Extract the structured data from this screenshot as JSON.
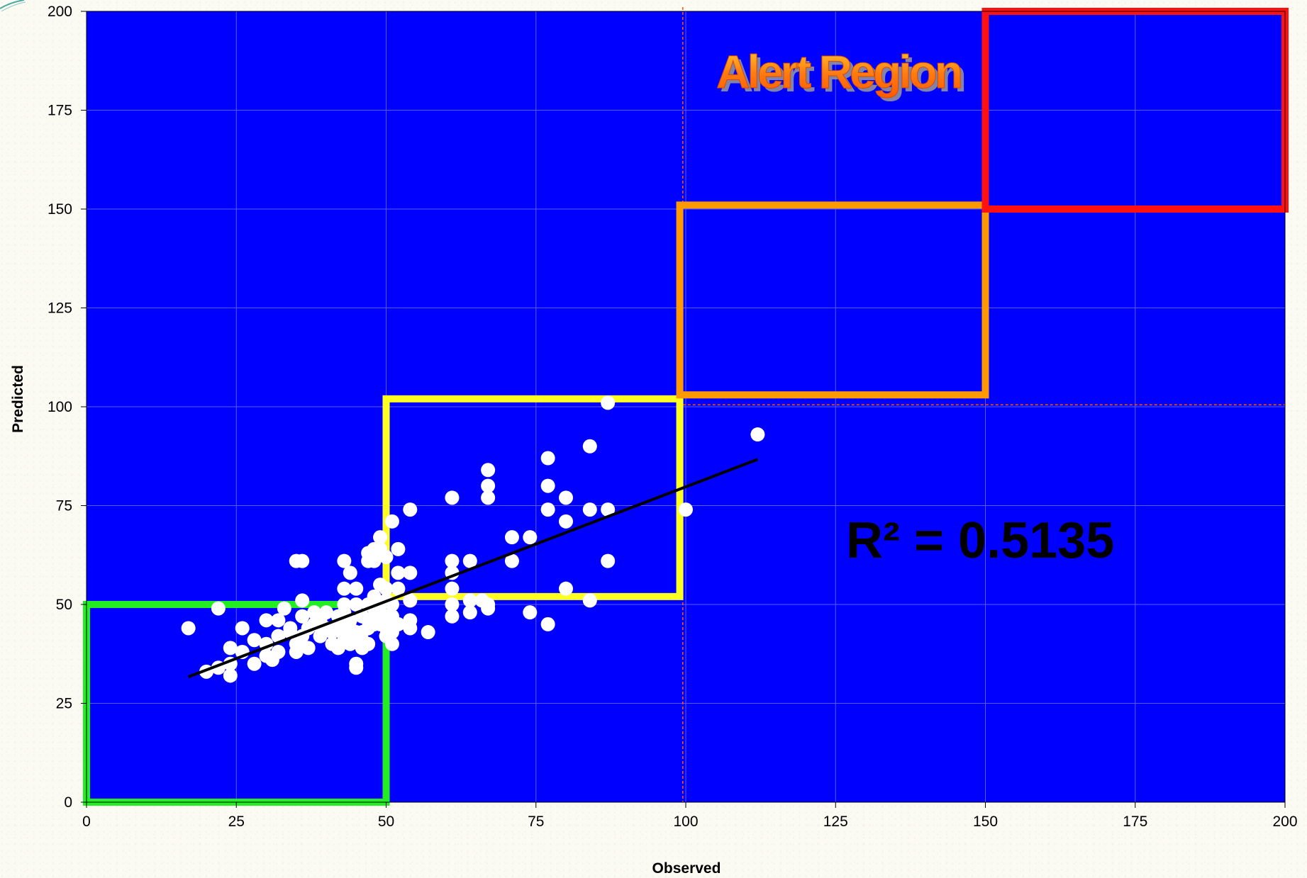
{
  "chart_data": {
    "type": "scatter",
    "xlabel": "Observed",
    "ylabel": "Predicted",
    "xlim": [
      0,
      200
    ],
    "ylim": [
      0,
      200
    ],
    "xticks": [
      0,
      25,
      50,
      75,
      100,
      125,
      150,
      175,
      200
    ],
    "yticks": [
      0,
      25,
      50,
      75,
      100,
      125,
      150,
      175,
      200
    ],
    "grid": true,
    "plot_background": "#0000ff",
    "marker_color": "#ffffff",
    "points": [
      [
        17,
        44
      ],
      [
        20,
        33
      ],
      [
        22,
        34
      ],
      [
        22,
        49
      ],
      [
        24,
        39
      ],
      [
        24,
        32
      ],
      [
        24,
        35
      ],
      [
        26,
        38
      ],
      [
        26,
        44
      ],
      [
        28,
        41
      ],
      [
        28,
        35
      ],
      [
        30,
        37
      ],
      [
        30,
        40
      ],
      [
        30,
        46
      ],
      [
        31,
        36
      ],
      [
        32,
        42
      ],
      [
        32,
        38
      ],
      [
        32,
        46
      ],
      [
        33,
        49
      ],
      [
        34,
        44
      ],
      [
        34,
        43
      ],
      [
        35,
        38
      ],
      [
        35,
        40
      ],
      [
        35,
        61
      ],
      [
        36,
        61
      ],
      [
        36,
        42
      ],
      [
        36,
        47
      ],
      [
        36,
        51
      ],
      [
        37,
        39
      ],
      [
        37,
        44
      ],
      [
        38,
        45
      ],
      [
        38,
        48
      ],
      [
        39,
        46
      ],
      [
        39,
        42
      ],
      [
        40,
        44
      ],
      [
        40,
        48
      ],
      [
        41,
        40
      ],
      [
        41,
        43
      ],
      [
        42,
        39
      ],
      [
        42,
        45
      ],
      [
        42,
        47
      ],
      [
        43,
        48
      ],
      [
        43,
        41
      ],
      [
        43,
        42
      ],
      [
        43,
        50
      ],
      [
        43,
        54
      ],
      [
        43,
        61
      ],
      [
        44,
        46
      ],
      [
        44,
        58
      ],
      [
        44,
        44
      ],
      [
        44,
        40
      ],
      [
        45,
        42
      ],
      [
        45,
        43
      ],
      [
        45,
        54
      ],
      [
        45,
        34
      ],
      [
        45,
        35
      ],
      [
        45,
        50
      ],
      [
        46,
        41
      ],
      [
        46,
        47
      ],
      [
        46,
        39
      ],
      [
        46,
        43
      ],
      [
        47,
        44
      ],
      [
        47,
        46
      ],
      [
        47,
        50
      ],
      [
        47,
        40
      ],
      [
        47,
        61
      ],
      [
        47,
        63
      ],
      [
        48,
        45
      ],
      [
        48,
        47
      ],
      [
        48,
        49
      ],
      [
        48,
        52
      ],
      [
        48,
        61
      ],
      [
        48,
        64
      ],
      [
        49,
        45
      ],
      [
        49,
        48
      ],
      [
        49,
        50
      ],
      [
        49,
        55
      ],
      [
        49,
        64
      ],
      [
        49,
        67
      ],
      [
        50,
        42
      ],
      [
        50,
        44
      ],
      [
        50,
        47
      ],
      [
        50,
        51
      ],
      [
        50,
        54
      ],
      [
        50,
        62
      ],
      [
        51,
        40
      ],
      [
        51,
        43
      ],
      [
        51,
        47
      ],
      [
        51,
        50
      ],
      [
        51,
        71
      ],
      [
        52,
        45
      ],
      [
        52,
        54
      ],
      [
        52,
        58
      ],
      [
        52,
        64
      ],
      [
        54,
        44
      ],
      [
        54,
        46
      ],
      [
        54,
        51
      ],
      [
        54,
        58
      ],
      [
        54,
        74
      ],
      [
        57,
        43
      ],
      [
        61,
        47
      ],
      [
        61,
        50
      ],
      [
        61,
        54
      ],
      [
        61,
        58
      ],
      [
        61,
        61
      ],
      [
        61,
        77
      ],
      [
        64,
        51
      ],
      [
        64,
        48
      ],
      [
        64,
        61
      ],
      [
        66,
        51
      ],
      [
        67,
        49
      ],
      [
        67,
        50
      ],
      [
        67,
        77
      ],
      [
        67,
        80
      ],
      [
        67,
        84
      ],
      [
        71,
        61
      ],
      [
        71,
        67
      ],
      [
        74,
        48
      ],
      [
        74,
        67
      ],
      [
        77,
        45
      ],
      [
        77,
        74
      ],
      [
        77,
        80
      ],
      [
        77,
        87
      ],
      [
        80,
        54
      ],
      [
        80,
        71
      ],
      [
        80,
        77
      ],
      [
        84,
        51
      ],
      [
        84,
        74
      ],
      [
        84,
        90
      ],
      [
        87,
        61
      ],
      [
        87,
        74
      ],
      [
        87,
        101
      ],
      [
        100,
        74
      ],
      [
        112,
        93
      ]
    ],
    "trendline": {
      "x": [
        17,
        112
      ],
      "y": [
        31.7,
        86.7
      ],
      "color": "#000000"
    },
    "regions": [
      {
        "x": [
          0,
          50
        ],
        "y": [
          0,
          50
        ],
        "color": "#22ee22"
      },
      {
        "x": [
          50,
          99
        ],
        "y": [
          52,
          102
        ],
        "color": "#ffff22"
      },
      {
        "x": [
          99,
          150
        ],
        "y": [
          103,
          151
        ],
        "color": "#ff9900"
      },
      {
        "x": [
          150,
          200
        ],
        "y": [
          150,
          200
        ],
        "color": "#ff1111"
      }
    ],
    "threshold_lines": {
      "x": 99.5,
      "y": 100.5,
      "color": "#ff5500"
    },
    "annotations": {
      "r_squared": "R² = 0.5135",
      "alert_region": "Alert Region"
    }
  }
}
